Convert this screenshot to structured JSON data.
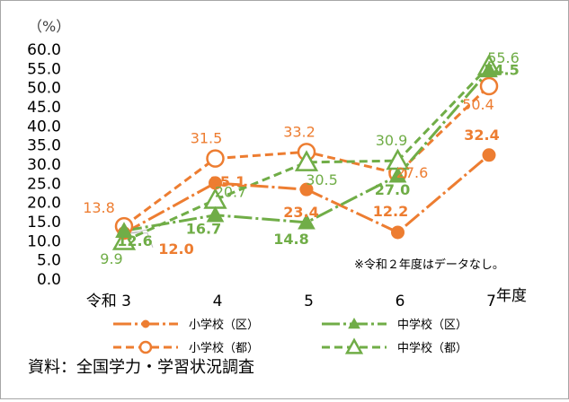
{
  "chart_data": {
    "type": "line",
    "unit_label": "（%）",
    "categories": [
      "令和 3",
      "4",
      "5",
      "6",
      "7"
    ],
    "category_suffix": "年度",
    "ylim": [
      0,
      60
    ],
    "y_ticks": [
      "0.0",
      "5.0",
      "10.0",
      "15.0",
      "20.0",
      "25.0",
      "30.0",
      "35.0",
      "40.0",
      "45.0",
      "50.0",
      "55.0",
      "60.0"
    ],
    "grid": false,
    "series": [
      {
        "name": "小学校（区）",
        "values": [
          12.0,
          25.1,
          23.4,
          12.2,
          32.4
        ],
        "labels": [
          "12.0",
          "25.1",
          "23.4",
          "12.2",
          "32.4"
        ],
        "color": "#ed7d31",
        "marker": "filled-circle",
        "dash": "dashdot",
        "label_bold": true
      },
      {
        "name": "中学校（区）",
        "values": [
          12.6,
          16.7,
          14.8,
          27.0,
          54.5
        ],
        "labels": [
          "12.6",
          "16.7",
          "14.8",
          "27.0",
          "54.5"
        ],
        "color": "#70ad47",
        "marker": "filled-triangle",
        "dash": "dashdot",
        "label_bold": true
      },
      {
        "name": "小学校（都）",
        "values": [
          13.8,
          31.5,
          33.2,
          27.6,
          50.4
        ],
        "labels": [
          "13.8",
          "31.5",
          "33.2",
          "27.6",
          "50.4"
        ],
        "color": "#ed7d31",
        "marker": "open-circle",
        "dash": "dashed",
        "label_bold": false
      },
      {
        "name": "中学校（都）",
        "values": [
          9.9,
          20.7,
          30.5,
          30.9,
          55.6
        ],
        "labels": [
          "9.9",
          "20.7",
          "30.5",
          "30.9",
          "55.6"
        ],
        "color": "#70ad47",
        "marker": "open-triangle",
        "dash": "dashed",
        "label_bold": false
      }
    ],
    "legend_placement": "bottom",
    "annotation": "※令和２年度はデータなし。"
  },
  "source": "資料：全国学力・学習状況調査"
}
